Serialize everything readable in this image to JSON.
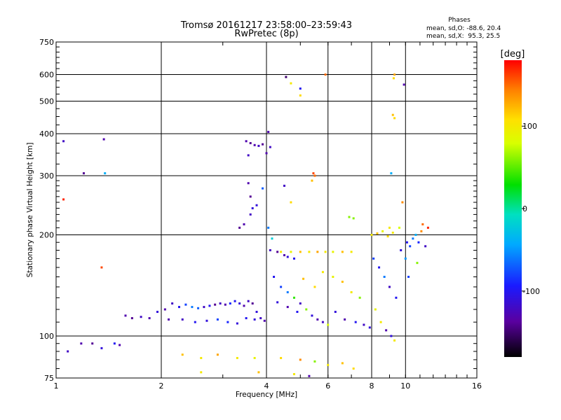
{
  "chart_data": {
    "type": "scatter",
    "title": "Tromsø 20161217 23:58:00–23:59:43",
    "subtitle": "RwPretec (8p)",
    "xlabel": "Frequency [MHz]",
    "ylabel": "Stationary phase Virtual Height [km]",
    "x_scale": "log",
    "y_scale": "log",
    "xlim": [
      1,
      16
    ],
    "ylim": [
      75,
      750
    ],
    "x_ticks": [
      "1",
      "2",
      "4",
      "6",
      "8",
      "10",
      "16"
    ],
    "y_ticks": [
      "75",
      "100",
      "200",
      "300",
      "400",
      "500",
      "600",
      "750"
    ],
    "x_grid": [
      2,
      4,
      6,
      8,
      10
    ],
    "y_grid": [
      100,
      200,
      300,
      400,
      500,
      600
    ],
    "grid": true,
    "phases": {
      "title": "Phases",
      "line_o": "mean, sd,O: -88.6, 20.4",
      "line_x": "mean, sd,X:  95.3, 25.5"
    },
    "colorbar": {
      "label": "[deg]",
      "range": [
        -180,
        180
      ],
      "ticks": [
        "100",
        "0",
        "-100"
      ],
      "tick_values": [
        100,
        0,
        -100
      ],
      "placement": "right"
    },
    "series": [
      {
        "points": [
          [
            1.05,
            380,
            -120
          ],
          [
            1.2,
            305,
            -140
          ],
          [
            1.37,
            385,
            -130
          ],
          [
            1.38,
            305,
            -40
          ],
          [
            1.18,
            95,
            -130
          ],
          [
            1.27,
            95,
            -140
          ],
          [
            1.35,
            92,
            -110
          ],
          [
            1.47,
            95,
            -100
          ],
          [
            1.52,
            94,
            -130
          ],
          [
            1.58,
            115,
            -130
          ],
          [
            1.65,
            113,
            -140
          ],
          [
            1.75,
            114,
            -120
          ],
          [
            1.85,
            113,
            -130
          ],
          [
            1.95,
            118,
            -110
          ],
          [
            2.05,
            120,
            -130
          ],
          [
            2.15,
            125,
            -120
          ],
          [
            2.25,
            122,
            -100
          ],
          [
            2.35,
            124,
            -80
          ],
          [
            2.45,
            122,
            -60
          ],
          [
            2.55,
            121,
            -70
          ],
          [
            2.65,
            122,
            -120
          ],
          [
            2.75,
            123,
            -100
          ],
          [
            2.85,
            124,
            -140
          ],
          [
            2.95,
            125,
            -120
          ],
          [
            3.05,
            124,
            -130
          ],
          [
            3.15,
            125,
            -90
          ],
          [
            3.25,
            127,
            -100
          ],
          [
            3.35,
            125,
            -110
          ],
          [
            3.45,
            123,
            -130
          ],
          [
            3.55,
            127,
            -120
          ],
          [
            3.65,
            125,
            -140
          ],
          [
            3.75,
            118,
            -110
          ],
          [
            3.85,
            113,
            -120
          ],
          [
            3.95,
            111,
            -130
          ],
          [
            2.1,
            112,
            -130
          ],
          [
            2.3,
            112,
            -120
          ],
          [
            2.5,
            110,
            -100
          ],
          [
            2.7,
            111,
            -110
          ],
          [
            2.9,
            112,
            -80
          ],
          [
            3.1,
            110,
            -90
          ],
          [
            3.3,
            109,
            -110
          ],
          [
            3.5,
            113,
            -100
          ],
          [
            3.7,
            112,
            -110
          ],
          [
            3.35,
            210,
            -140
          ],
          [
            3.45,
            215,
            -130
          ],
          [
            3.6,
            230,
            -120
          ],
          [
            3.75,
            245,
            -110
          ],
          [
            3.55,
            285,
            -130
          ],
          [
            3.6,
            260,
            -140
          ],
          [
            3.65,
            240,
            -110
          ],
          [
            3.5,
            380,
            -130
          ],
          [
            3.6,
            375,
            -140
          ],
          [
            3.7,
            370,
            -130
          ],
          [
            3.8,
            368,
            -120
          ],
          [
            3.9,
            372,
            -140
          ],
          [
            3.55,
            345,
            -120
          ],
          [
            4.05,
            405,
            -130
          ],
          [
            3.9,
            275,
            -70
          ],
          [
            4.0,
            350,
            -130
          ],
          [
            4.1,
            365,
            -120
          ],
          [
            4.05,
            210,
            -60
          ],
          [
            4.15,
            195,
            -20
          ],
          [
            4.1,
            180,
            -120
          ],
          [
            4.3,
            178,
            -140
          ],
          [
            4.5,
            174,
            -130
          ],
          [
            4.6,
            172,
            -110
          ],
          [
            4.8,
            170,
            -100
          ],
          [
            4.4,
            178,
            100
          ],
          [
            4.7,
            178,
            90
          ],
          [
            5.0,
            178,
            120
          ],
          [
            5.3,
            178,
            100
          ],
          [
            5.6,
            178,
            130
          ],
          [
            5.9,
            178,
            100
          ],
          [
            6.2,
            178,
            90
          ],
          [
            6.6,
            178,
            120
          ],
          [
            7.0,
            178,
            100
          ],
          [
            4.2,
            150,
            -100
          ],
          [
            4.4,
            140,
            -80
          ],
          [
            4.6,
            135,
            -60
          ],
          [
            4.8,
            130,
            40
          ],
          [
            5.0,
            125,
            -120
          ],
          [
            5.2,
            120,
            60
          ],
          [
            5.4,
            115,
            -110
          ],
          [
            5.6,
            112,
            -130
          ],
          [
            5.8,
            110,
            -120
          ],
          [
            6.0,
            108,
            80
          ],
          [
            4.3,
            126,
            -110
          ],
          [
            4.6,
            122,
            -130
          ],
          [
            4.9,
            118,
            -100
          ],
          [
            5.1,
            148,
            120
          ],
          [
            5.5,
            140,
            110
          ],
          [
            5.8,
            155,
            100
          ],
          [
            6.2,
            150,
            90
          ],
          [
            6.6,
            145,
            120
          ],
          [
            7.0,
            135,
            100
          ],
          [
            7.4,
            130,
            60
          ],
          [
            6.3,
            118,
            -110
          ],
          [
            6.7,
            112,
            -130
          ],
          [
            7.2,
            110,
            -100
          ],
          [
            7.6,
            108,
            -120
          ],
          [
            7.9,
            106,
            -110
          ],
          [
            6.9,
            226,
            60
          ],
          [
            7.1,
            224,
            60
          ],
          [
            8.0,
            200,
            100
          ],
          [
            8.3,
            202,
            120
          ],
          [
            8.6,
            205,
            90
          ],
          [
            8.9,
            198,
            110
          ],
          [
            9.2,
            203,
            100
          ],
          [
            8.1,
            170,
            -80
          ],
          [
            8.4,
            160,
            -100
          ],
          [
            8.7,
            150,
            -60
          ],
          [
            9.0,
            140,
            -120
          ],
          [
            9.4,
            130,
            -100
          ],
          [
            8.2,
            120,
            90
          ],
          [
            8.5,
            110,
            100
          ],
          [
            8.8,
            104,
            -130
          ],
          [
            9.1,
            100,
            -110
          ],
          [
            9.3,
            97,
            100
          ],
          [
            9.3,
            600,
            130
          ],
          [
            9.25,
            585,
            110
          ],
          [
            9.2,
            455,
            120
          ],
          [
            9.3,
            445,
            110
          ],
          [
            9.1,
            305,
            -40
          ],
          [
            9.0,
            210,
            100
          ],
          [
            9.6,
            210,
            80
          ],
          [
            9.8,
            250,
            140
          ],
          [
            9.9,
            560,
            -130
          ],
          [
            10.1,
            190,
            -100
          ],
          [
            10.3,
            185,
            -80
          ],
          [
            10.5,
            195,
            -60
          ],
          [
            10.7,
            200,
            -40
          ],
          [
            10.9,
            190,
            -90
          ],
          [
            11.1,
            205,
            140
          ],
          [
            11.2,
            215,
            150
          ],
          [
            11.4,
            185,
            -120
          ],
          [
            11.6,
            210,
            170
          ],
          [
            10.2,
            150,
            -80
          ],
          [
            10.0,
            170,
            -50
          ],
          [
            9.7,
            180,
            -110
          ],
          [
            10.8,
            165,
            60
          ],
          [
            5.0,
            545,
            -100
          ],
          [
            4.7,
            565,
            100
          ],
          [
            5.0,
            520,
            110
          ],
          [
            4.55,
            590,
            -150
          ],
          [
            5.45,
            305,
            160
          ],
          [
            5.5,
            300,
            150
          ],
          [
            5.4,
            290,
            120
          ],
          [
            5.9,
            600,
            150
          ],
          [
            4.7,
            250,
            110
          ],
          [
            4.5,
            280,
            -120
          ],
          [
            1.05,
            255,
            170
          ],
          [
            1.35,
            160,
            160
          ],
          [
            1.08,
            90,
            -120
          ],
          [
            2.3,
            88,
            120
          ],
          [
            2.6,
            86,
            100
          ],
          [
            2.9,
            88,
            130
          ],
          [
            3.3,
            86,
            100
          ],
          [
            3.7,
            86,
            90
          ],
          [
            4.4,
            86,
            110
          ],
          [
            5.0,
            85,
            140
          ],
          [
            5.5,
            84,
            60
          ],
          [
            6.0,
            82,
            100
          ],
          [
            6.6,
            83,
            120
          ],
          [
            7.1,
            80,
            110
          ],
          [
            4.8,
            77,
            100
          ],
          [
            5.3,
            76,
            -130
          ],
          [
            3.8,
            78,
            120
          ],
          [
            2.6,
            78,
            100
          ]
        ]
      }
    ]
  }
}
